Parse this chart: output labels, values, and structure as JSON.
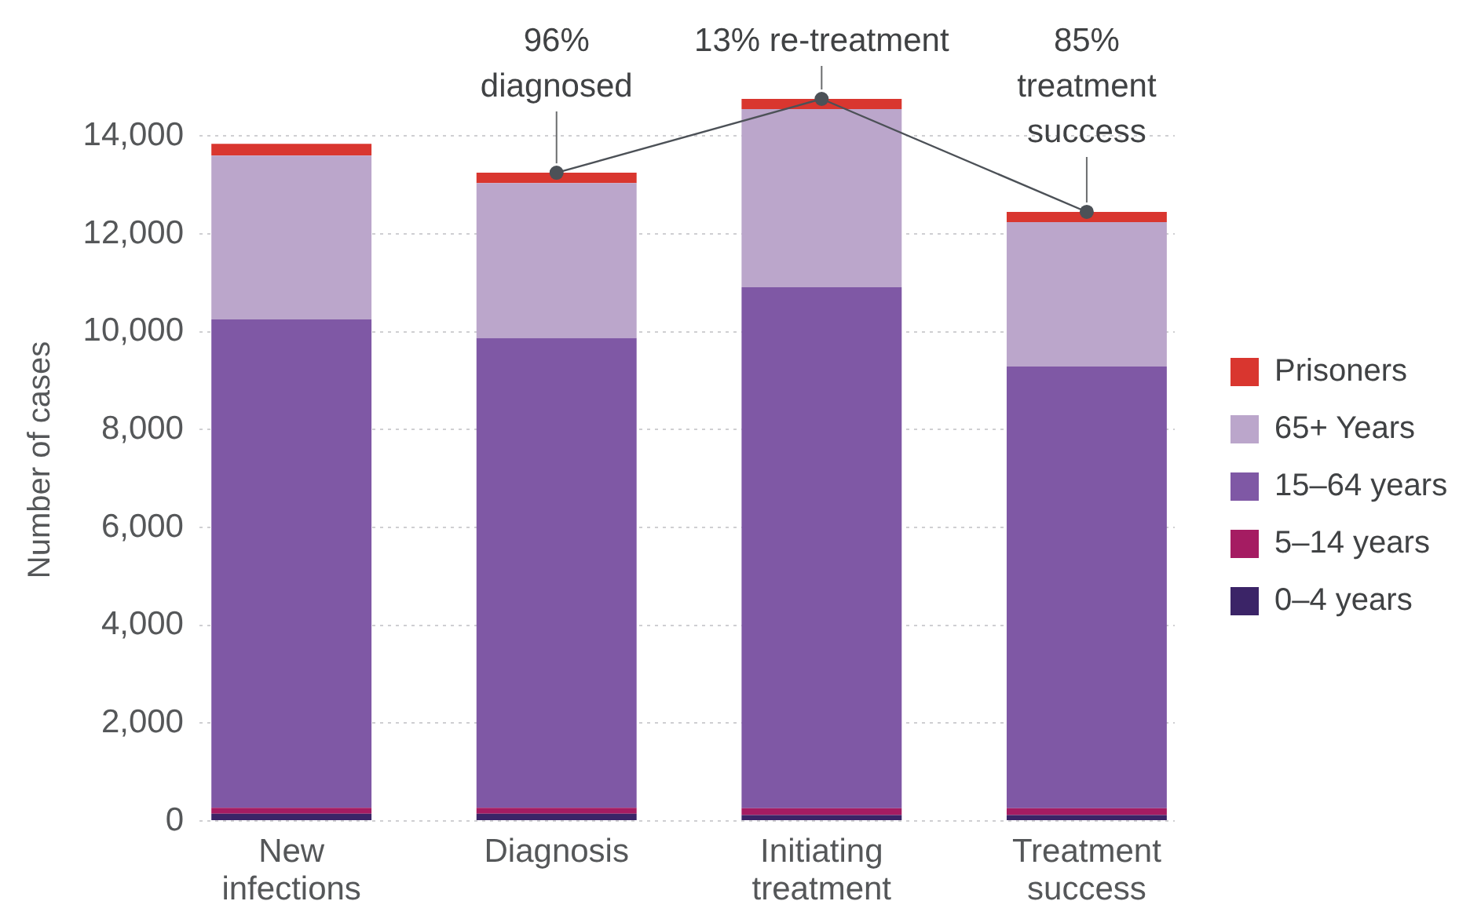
{
  "chart_data": {
    "type": "bar",
    "stacked": true,
    "categories": [
      "New infections",
      "Diagnosis",
      "Initiating treatment",
      "Treatment success"
    ],
    "ylabel": "Number of cases",
    "ylim": [
      0,
      14760
    ],
    "yticks": [
      0,
      {
        "value": 2000,
        "label": "2,000"
      },
      {
        "value": 4000,
        "label": "4,000"
      },
      {
        "value": 6000,
        "label": "6,000"
      },
      {
        "value": 8000,
        "label": "8,000"
      },
      {
        "value": 10000,
        "label": "10,000"
      },
      {
        "value": 12000,
        "label": "12,000"
      },
      {
        "value": 14000,
        "label": "14,000"
      }
    ],
    "grid": "y",
    "legend": "right",
    "marker": "circle",
    "series": [
      {
        "name": "0–4 years",
        "color": "#3b2467",
        "values": [
          150,
          150,
          120,
          120
        ]
      },
      {
        "name": "5–14 years",
        "color": "#a51c62",
        "values": [
          120,
          120,
          140,
          140
        ]
      },
      {
        "name": "15–64 years",
        "color": "#7f58a5",
        "values": [
          9980,
          9600,
          10650,
          9030
        ]
      },
      {
        "name": "65+ Years",
        "color": "#bba6cb",
        "values": [
          3350,
          3170,
          3640,
          2950
        ]
      },
      {
        "name": "Prisoners",
        "color": "#d9362f",
        "values": [
          240,
          210,
          210,
          210
        ]
      },
      {
        "type": "line",
        "color": "#4c5157",
        "values": [
          null,
          13250,
          14760,
          12450
        ]
      }
    ],
    "annotations": [
      {
        "text": "96%\ndiagnosed",
        "x": "Diagnosis",
        "y": 13250
      },
      {
        "text": "13% re-treatment",
        "x": "Initiating treatment",
        "y": 14760
      },
      {
        "text": "85%\ntreatment\nsuccess",
        "x": "Treatment success",
        "y": 12450
      }
    ]
  }
}
